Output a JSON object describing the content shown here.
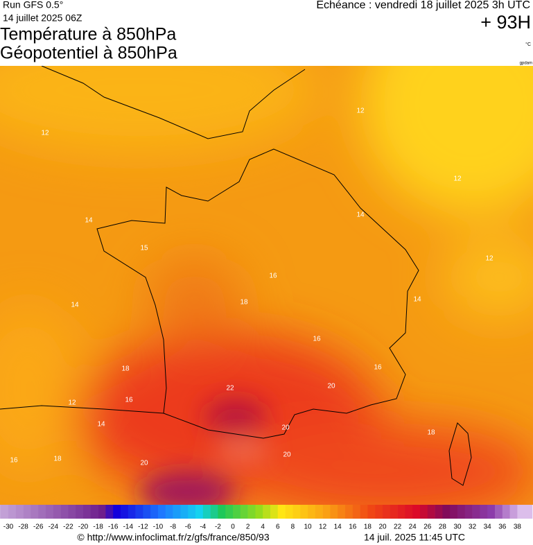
{
  "header": {
    "run": "Run GFS 0.5°",
    "run_date": "14 juillet 2025 06Z",
    "title_1": "Température à 850hPa",
    "title_2": "Géopotentiel à 850hPa",
    "forecast": "Echéance : vendredi 18 juillet 2025 3h UTC",
    "lead": "+ 93H",
    "unit": "°C",
    "credit": "gpdam"
  },
  "map": {
    "isoline_labels": [
      "12",
      "12",
      "14",
      "12",
      "14",
      "15",
      "12",
      "16",
      "14",
      "18",
      "14",
      "16",
      "18",
      "16",
      "16",
      "12",
      "14",
      "22",
      "20",
      "20",
      "18",
      "20",
      "18",
      "16",
      "20"
    ]
  },
  "legend": {
    "ticks": [
      -30,
      -28,
      -26,
      -24,
      -22,
      -20,
      -18,
      -16,
      -14,
      -12,
      -10,
      -8,
      -6,
      -4,
      -2,
      0,
      2,
      4,
      6,
      8,
      10,
      12,
      14,
      16,
      18,
      20,
      22,
      24,
      26,
      28,
      30,
      32,
      34,
      36,
      38
    ]
  },
  "footer": {
    "url": "© http://www.infoclimat.fr/z/gfs/france/850/93",
    "timestamp": "14 juil. 2025 11:45 UTC"
  }
}
